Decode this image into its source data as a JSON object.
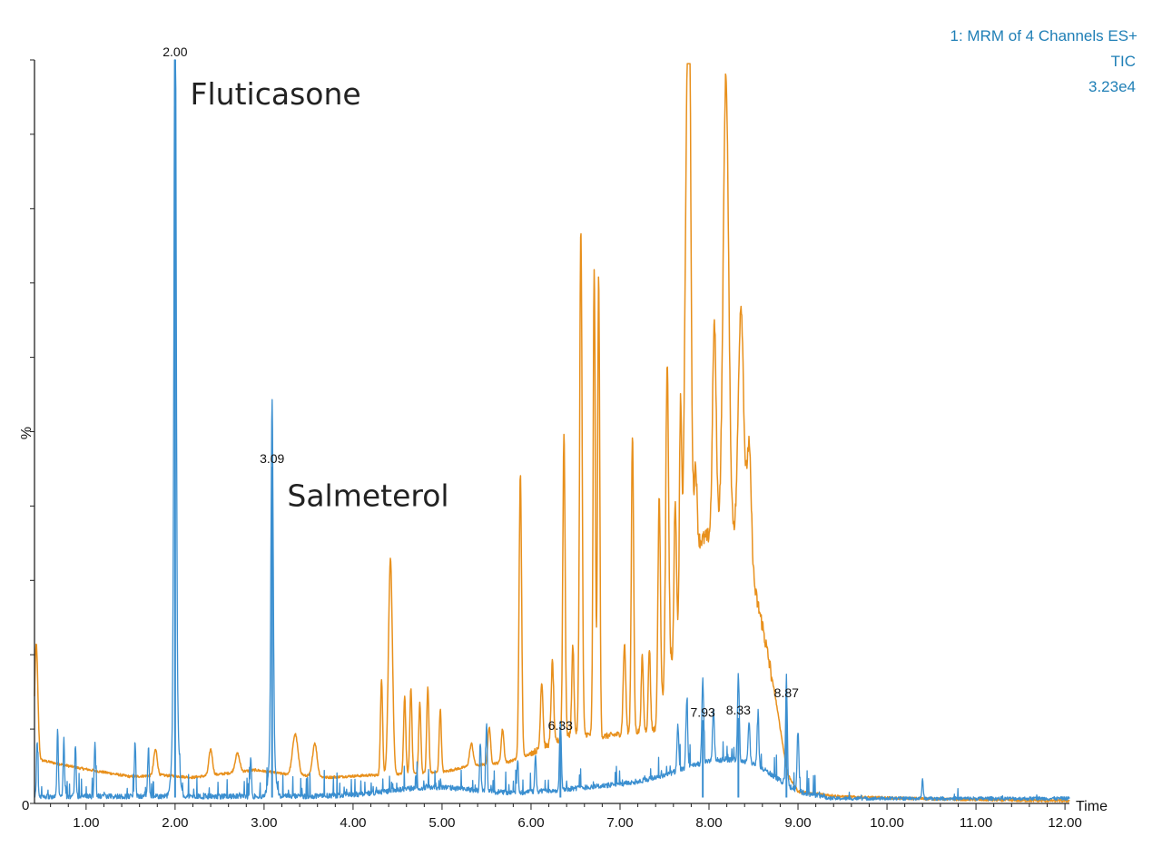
{
  "header": {
    "line1": "1: MRM of 4 Channels ES+",
    "line2": "TIC",
    "line3": "3.23e4"
  },
  "chart_data": {
    "type": "line",
    "xlabel": "Time",
    "ylabel": "%",
    "xlim": [
      0.42,
      12.05
    ],
    "ylim": [
      0,
      100
    ],
    "x_ticks": [
      1.0,
      2.0,
      3.0,
      4.0,
      5.0,
      6.0,
      7.0,
      8.0,
      9.0,
      10.0,
      11.0,
      12.0
    ],
    "x_tick_labels": [
      "1.00",
      "2.00",
      "3.00",
      "4.00",
      "5.00",
      "6.00",
      "7.00",
      "8.00",
      "9.00",
      "10.00",
      "11.00",
      "12.00"
    ],
    "y_tick_labels": [
      "0"
    ],
    "grid": false,
    "colors": {
      "blue": "#3b8fd0",
      "orange": "#e8901c",
      "header": "#1f7fb6"
    },
    "annotations": [
      {
        "text": "Fluticasone",
        "x": 2.17,
        "y": 94
      },
      {
        "text": "Salmeterol",
        "x": 3.26,
        "y": 40
      }
    ],
    "peak_labels": [
      {
        "text": "2.00",
        "x": 2.0,
        "y": 100
      },
      {
        "text": "3.09",
        "x": 3.09,
        "y": 45.3
      },
      {
        "text": "6.33",
        "x": 6.33,
        "y": 9.4
      },
      {
        "text": "7.93",
        "x": 7.93,
        "y": 11.2
      },
      {
        "text": "8.33",
        "x": 8.33,
        "y": 11.5
      },
      {
        "text": "8.87",
        "x": 8.87,
        "y": 13.8
      }
    ],
    "series": [
      {
        "color": "#3b8fd0",
        "baseline": 0.6,
        "noise": 0.7,
        "peaks": [
          [
            2.0,
            100,
            0.012
          ],
          [
            2.005,
            15,
            0.03
          ],
          [
            3.09,
            45.3,
            0.012
          ],
          [
            3.09,
            8,
            0.03
          ],
          [
            6.33,
            9.4,
            0.01
          ],
          [
            7.93,
            11.2,
            0.01
          ],
          [
            8.33,
            11.5,
            0.01
          ],
          [
            8.87,
            13.8,
            0.01
          ],
          [
            0.45,
            7.5,
            0.008
          ],
          [
            0.68,
            8.8,
            0.008
          ],
          [
            0.75,
            7.5,
            0.008
          ],
          [
            0.88,
            7,
            0.008
          ],
          [
            1.1,
            7.5,
            0.008
          ],
          [
            1.55,
            7.5,
            0.008
          ],
          [
            1.7,
            6.5,
            0.008
          ],
          [
            2.85,
            5.3,
            0.008
          ],
          [
            5.43,
            6.5,
            0.008
          ],
          [
            5.5,
            9.0,
            0.008
          ],
          [
            5.85,
            4.5,
            0.008
          ],
          [
            6.05,
            5.0,
            0.008
          ],
          [
            7.65,
            6.0,
            0.01
          ],
          [
            7.75,
            9.0,
            0.01
          ],
          [
            8.05,
            7.0,
            0.01
          ],
          [
            8.45,
            5.5,
            0.01
          ],
          [
            8.55,
            6.5,
            0.01
          ],
          [
            9.0,
            8.0,
            0.01
          ],
          [
            10.4,
            3.6,
            0.008
          ]
        ],
        "bumps": [
          [
            7.8,
            2.5,
            0.45
          ],
          [
            8.25,
            2.8,
            0.35
          ],
          [
            8.6,
            1.5,
            0.25
          ],
          [
            4.9,
            1.2,
            0.5
          ],
          [
            6.8,
            1.2,
            0.6
          ]
        ]
      },
      {
        "color": "#e8901c",
        "baseline_points": [
          [
            0.42,
            6.0
          ],
          [
            0.9,
            4.8
          ],
          [
            1.5,
            3.6
          ],
          [
            1.85,
            3.8
          ],
          [
            2.2,
            3.5
          ],
          [
            2.9,
            4.5
          ],
          [
            3.2,
            4.0
          ],
          [
            3.7,
            3.5
          ],
          [
            4.2,
            3.8
          ],
          [
            4.3,
            3.8
          ],
          [
            5.0,
            4.2
          ],
          [
            5.3,
            5.0
          ],
          [
            5.75,
            5.6
          ],
          [
            5.95,
            6.5
          ],
          [
            6.5,
            9.5
          ],
          [
            6.8,
            9.0
          ],
          [
            7.4,
            10.0
          ],
          [
            7.6,
            20
          ],
          [
            7.85,
            35
          ],
          [
            8.0,
            36
          ],
          [
            8.2,
            38
          ],
          [
            8.45,
            32
          ],
          [
            8.6,
            24
          ],
          [
            8.75,
            14
          ],
          [
            8.88,
            4.0
          ],
          [
            9.0,
            1.6
          ],
          [
            9.5,
            0.9
          ],
          [
            10.5,
            0.6
          ],
          [
            11.5,
            0.4
          ],
          [
            12.05,
            0.35
          ]
        ],
        "peaks": [
          [
            0.44,
            15.5,
            0.018
          ],
          [
            1.78,
            3.5,
            0.02
          ],
          [
            2.4,
            3.5,
            0.02
          ],
          [
            2.7,
            2.5,
            0.025
          ],
          [
            3.35,
            5.5,
            0.03
          ],
          [
            3.57,
            4.5,
            0.025
          ],
          [
            4.32,
            13.0,
            0.012
          ],
          [
            4.42,
            29.0,
            0.022
          ],
          [
            4.58,
            10.5,
            0.012
          ],
          [
            4.65,
            11.5,
            0.012
          ],
          [
            4.75,
            9.5,
            0.012
          ],
          [
            4.84,
            11.5,
            0.012
          ],
          [
            4.98,
            8.5,
            0.012
          ],
          [
            5.33,
            3.0,
            0.02
          ],
          [
            5.53,
            5.0,
            0.015
          ],
          [
            5.68,
            4.5,
            0.015
          ],
          [
            5.88,
            38.0,
            0.014
          ],
          [
            6.12,
            9.0,
            0.014
          ],
          [
            6.24,
            11.0,
            0.014
          ],
          [
            6.37,
            41.0,
            0.013
          ],
          [
            6.47,
            12.0,
            0.012
          ],
          [
            6.56,
            68.0,
            0.014
          ],
          [
            6.71,
            63.0,
            0.012
          ],
          [
            6.76,
            62.0,
            0.012
          ],
          [
            7.05,
            12.0,
            0.014
          ],
          [
            7.14,
            40.0,
            0.013
          ],
          [
            7.25,
            10.0,
            0.012
          ],
          [
            7.33,
            11.0,
            0.012
          ],
          [
            7.44,
            29.0,
            0.014
          ],
          [
            7.53,
            42.0,
            0.016
          ],
          [
            7.62,
            20.0,
            0.012
          ],
          [
            7.68,
            28.0,
            0.012
          ],
          [
            7.76,
            67.0,
            0.03
          ],
          [
            7.78,
            30.0,
            0.015
          ],
          [
            7.85,
            10.0,
            0.015
          ],
          [
            8.06,
            28.0,
            0.02
          ],
          [
            8.19,
            60.0,
            0.03
          ],
          [
            8.36,
            33.0,
            0.03
          ],
          [
            8.45,
            16.0,
            0.025
          ]
        ]
      }
    ]
  }
}
